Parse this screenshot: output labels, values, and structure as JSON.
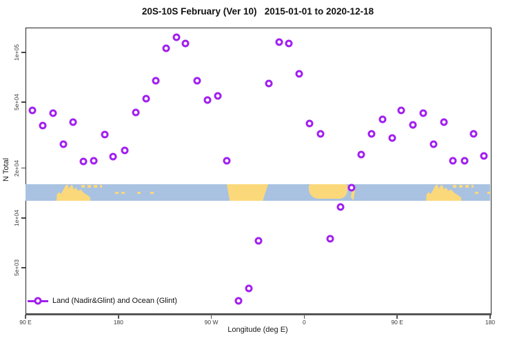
{
  "chart_data": {
    "type": "scatter",
    "title": "20S-10S February (Ver 10)   2015-01-01 to 2020-12-18",
    "xlabel": "Longitude (deg E)",
    "ylabel": "N Total",
    "y_scale": "log",
    "x_range_deg_east": [
      90,
      540
    ],
    "y_range": [
      2800,
      140000
    ],
    "grid": "off",
    "x_ticks": [
      {
        "label": "90 E",
        "lon": 90
      },
      {
        "label": "180",
        "lon": 180
      },
      {
        "label": "90 W",
        "lon": 270
      },
      {
        "label": "0",
        "lon": 360
      },
      {
        "label": "90 E",
        "lon": 450
      },
      {
        "label": "180",
        "lon": 540
      }
    ],
    "y_ticks": [
      {
        "label": "1e+05",
        "value": 100000
      },
      {
        "label": "5e+04",
        "value": 50000
      },
      {
        "label": "2e+04",
        "value": 20000
      },
      {
        "label": "1e+04",
        "value": 10000
      },
      {
        "label": "5e+03",
        "value": 5000
      }
    ],
    "legend": {
      "label": "Land (Nadir&Glint) and Ocean (Glint)",
      "position": "bottom-left"
    },
    "series": [
      {
        "name": "Land (Nadir&Glint) and Ocean (Glint)",
        "marker": "open-circle",
        "points": [
          [
            97,
            44700
          ],
          [
            107,
            36100
          ],
          [
            117,
            43000
          ],
          [
            127,
            27900
          ],
          [
            136,
            37900
          ],
          [
            146,
            22000
          ],
          [
            156,
            22200
          ],
          [
            167,
            31900
          ],
          [
            175,
            23500
          ],
          [
            186,
            25600
          ],
          [
            197,
            43400
          ],
          [
            207,
            52600
          ],
          [
            216,
            67500
          ],
          [
            226,
            106000
          ],
          [
            236,
            124000
          ],
          [
            245,
            113000
          ],
          [
            256,
            67500
          ],
          [
            266,
            51600
          ],
          [
            276,
            54700
          ],
          [
            285,
            22200
          ],
          [
            296,
            3160
          ],
          [
            306,
            3760
          ],
          [
            316,
            7290
          ],
          [
            326,
            65000
          ],
          [
            336,
            116000
          ],
          [
            345,
            113000
          ],
          [
            355,
            74300
          ],
          [
            365,
            37200
          ],
          [
            376,
            32200
          ],
          [
            385,
            7500
          ],
          [
            395,
            11600
          ],
          [
            406,
            15200
          ],
          [
            415,
            24200
          ],
          [
            425,
            32200
          ],
          [
            436,
            39400
          ],
          [
            445,
            30400
          ],
          [
            454,
            44700
          ],
          [
            465,
            36500
          ],
          [
            475,
            43000
          ],
          [
            485,
            27900
          ],
          [
            495,
            37900
          ],
          [
            504,
            22200
          ],
          [
            515,
            22200
          ],
          [
            524,
            32200
          ],
          [
            534,
            23700
          ]
        ]
      }
    ]
  },
  "map_strip": {
    "ocean_color": "#A9C2E1",
    "land_color": "#FBD87A",
    "band_top_value": 18500,
    "band_bottom_value": 14700,
    "patches": [
      {
        "name": "australia-land",
        "shape": "australia",
        "lon0": 120,
        "lon1": 153
      },
      {
        "name": "png-solomon-islands",
        "shape": "specks-top",
        "lon0": 144,
        "lon1": 164
      },
      {
        "name": "fiji-islands",
        "shape": "specks-mid",
        "lon0": 177,
        "lon1": 181
      },
      {
        "name": "samoa-islands",
        "shape": "specks-mid",
        "lon0": 183,
        "lon1": 187
      },
      {
        "name": "cook-islands",
        "shape": "specks-mid",
        "lon0": 198,
        "lon1": 202
      },
      {
        "name": "tahiti-islands",
        "shape": "specks-mid",
        "lon0": 211,
        "lon1": 214
      },
      {
        "name": "south-america-land",
        "shape": "wedge",
        "lon0": 285,
        "lon1": 325
      },
      {
        "name": "africa-land",
        "shape": "africa",
        "lon0": 364.5,
        "lon1": 401.5
      },
      {
        "name": "madagascar-land",
        "shape": "sliver",
        "lon0": 404,
        "lon1": 410
      },
      {
        "name": "australia-land",
        "shape": "australia",
        "lon0": 478,
        "lon1": 512
      },
      {
        "name": "png-solomon-islands",
        "shape": "specks-top",
        "lon0": 504,
        "lon1": 524
      },
      {
        "name": "new-caledonia-islands",
        "shape": "specks-mid",
        "lon0": 525,
        "lon1": 529
      },
      {
        "name": "fiji-islands",
        "shape": "specks-mid",
        "lon0": 537,
        "lon1": 540
      }
    ]
  },
  "colors": {
    "marker": "#A11FF0",
    "axis_box": "#222222",
    "axis_bottom": "#555555",
    "tick_text": "#3A3A3A"
  }
}
